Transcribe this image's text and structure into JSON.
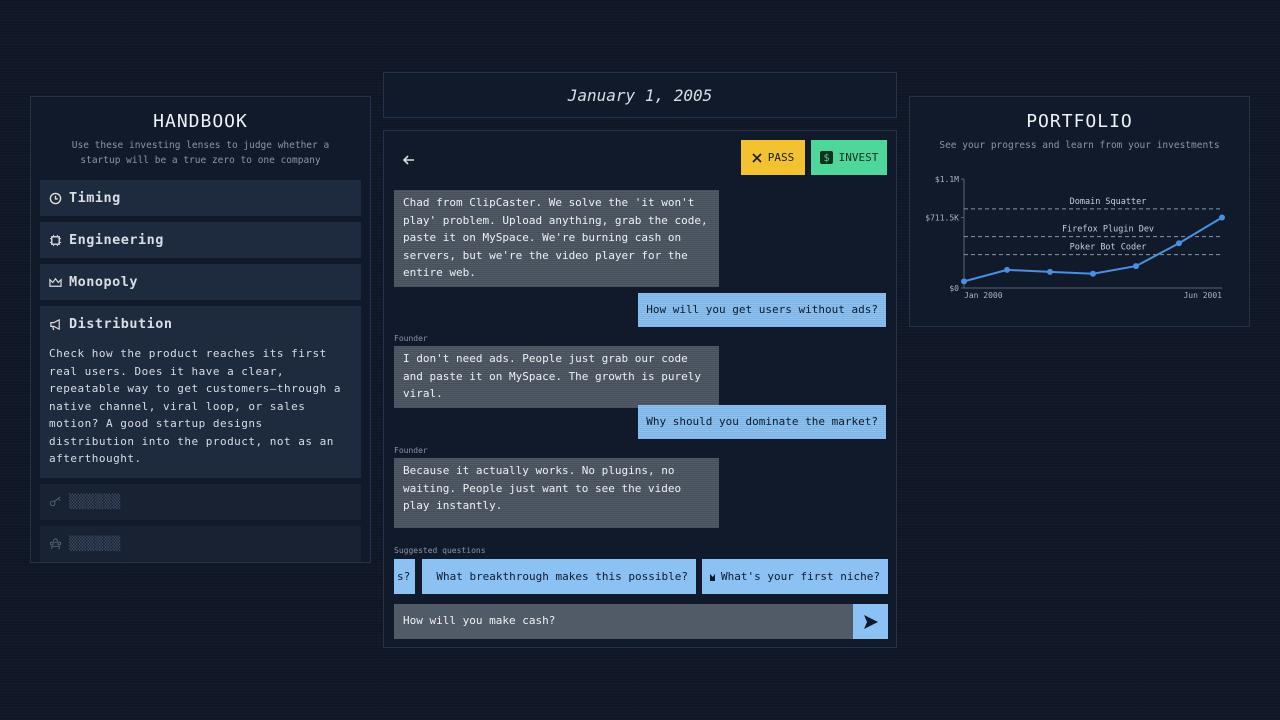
{
  "date": "January 1, 2005",
  "handbook": {
    "title": "HANDBOOK",
    "subtitle": "Use these investing lenses to judge whether a startup will be a true zero to one company",
    "items": [
      {
        "label": "Timing"
      },
      {
        "label": "Engineering"
      },
      {
        "label": "Monopoly"
      },
      {
        "label": "Distribution",
        "description": "Check how the product reaches its first real users. Does it have a clear, repeatable way to get customers—through a native channel, viral loop, or sales motion? A good startup designs distribution into the product, not as an afterthought."
      },
      {
        "label": "▒▒▒▒▒▒"
      },
      {
        "label": "▒▒▒▒▒▒"
      }
    ]
  },
  "chat": {
    "actions": [
      "PASS",
      "INVEST"
    ],
    "messages": [
      {
        "from": "founder",
        "text": "Chad from ClipCaster. We solve the 'it won't play' problem. Upload anything, grab the code, paste it on MySpace. We're burning cash on servers, but we're the video player for the entire web."
      },
      {
        "from": "user",
        "text": "How will you get users without ads?"
      },
      {
        "from": "founder",
        "label": "Founder",
        "text": "I don't need ads. People just grab our code and paste it on MySpace. The growth is purely viral."
      },
      {
        "from": "user",
        "text": "Why should you dominate the market?"
      },
      {
        "from": "founder",
        "label": "Founder",
        "text": "Because it actually works. No plugins, no waiting. People just want to see the video play instantly."
      }
    ],
    "suggestions_label": "Suggested questions",
    "suggestions": [
      "s?",
      "What breakthrough makes this possible?",
      "What's your first niche?"
    ],
    "input": "How will you make cash?"
  },
  "portfolio": {
    "title": "PORTFOLIO",
    "subtitle": "See your progress and learn from your investments",
    "chart_data": {
      "type": "line",
      "categories": [
        "Jan 2000",
        null,
        null,
        null,
        null,
        null,
        "Jun 2001"
      ],
      "series": [
        {
          "name": "Portfolio",
          "color": "#4a90e2",
          "values": [
            67000,
            183000,
            163000,
            144000,
            221000,
            452000,
            711500
          ]
        }
      ],
      "ylim": [
        0,
        1100000
      ],
      "yticks": [
        {
          "value": 0,
          "label": "$0"
        },
        {
          "value": 711500,
          "label": "$711.5K"
        },
        {
          "value": 1100000,
          "label": "$1.1M"
        }
      ],
      "reference_lines": [
        {
          "label": "Domain Squatter",
          "value": 798000
        },
        {
          "label": "Firefox Plugin Dev",
          "value": 519000
        },
        {
          "label": "Poker Bot Coder",
          "value": 337000
        }
      ]
    }
  }
}
